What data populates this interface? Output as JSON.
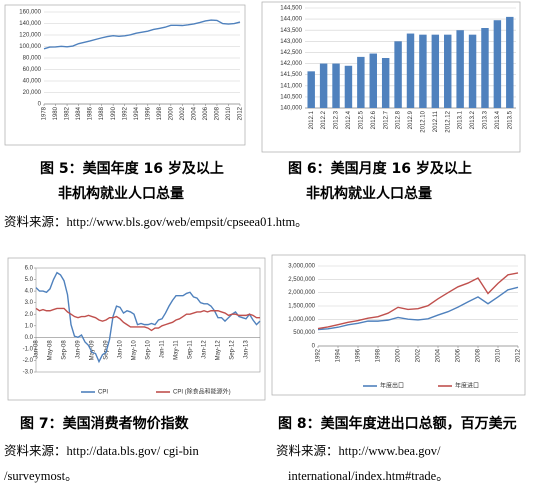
{
  "chart_data": [
    {
      "type": "line",
      "x": [
        1978,
        1979,
        1980,
        1981,
        1982,
        1983,
        1984,
        1985,
        1986,
        1987,
        1988,
        1989,
        1990,
        1991,
        1992,
        1993,
        1994,
        1995,
        1996,
        1997,
        1998,
        1999,
        2000,
        2001,
        2002,
        2003,
        2004,
        2005,
        2006,
        2007,
        2008,
        2009,
        2010,
        2011,
        2012
      ],
      "series": [
        {
          "color": "#4f81bd",
          "values": [
            96000,
            99000,
            99300,
            100400,
            99500,
            100800,
            105000,
            107200,
            109600,
            112400,
            115000,
            117300,
            118800,
            117700,
            118500,
            120300,
            123100,
            124900,
            126700,
            129600,
            131500,
            133500,
            136900,
            136900,
            136500,
            137700,
            139300,
            141700,
            144400,
            146000,
            145400,
            139900,
            139100,
            139900,
            142500
          ]
        }
      ],
      "xlim": [
        1978,
        2012
      ],
      "xticks": [
        1978,
        1980,
        1982,
        1984,
        1986,
        1988,
        1990,
        1992,
        1994,
        1996,
        1998,
        2000,
        2002,
        2004,
        2006,
        2008,
        2010,
        2012
      ],
      "ylim": [
        0,
        160000
      ],
      "yticks": [
        0,
        {
          "value": 20000,
          "label": "20,000"
        },
        {
          "value": 40000,
          "label": "40,000"
        },
        {
          "value": 60000,
          "label": "60,000"
        },
        {
          "value": 80000,
          "label": "80,000"
        },
        {
          "value": 100000,
          "label": "100,000"
        },
        {
          "value": 120000,
          "label": "120,000"
        },
        {
          "value": 140000,
          "label": "140,000"
        },
        {
          "value": 160000,
          "label": "160,000"
        }
      ],
      "grid": true
    },
    {
      "type": "bar",
      "categories": [
        "2012.1",
        "2012.2",
        "2012.3",
        "2012.4",
        "2012.5",
        "2012.6",
        "2012.7",
        "2012.8",
        "2012.9",
        "2012.10",
        "2012.11",
        "2012.12",
        "2013.1",
        "2013.2",
        "2013.3",
        "2013.4",
        "2013.5"
      ],
      "values": [
        141650,
        142000,
        142000,
        141900,
        142300,
        142450,
        142250,
        143000,
        143350,
        143300,
        143300,
        143300,
        143500,
        143300,
        143600,
        143950,
        144100
      ],
      "color": "#4f81bd",
      "ylim": [
        140000,
        144500
      ],
      "yticks": [
        {
          "value": 140000,
          "label": "140,000"
        },
        {
          "value": 140500,
          "label": "140,500"
        },
        {
          "value": 141000,
          "label": "141,000"
        },
        {
          "value": 141500,
          "label": "141,500"
        },
        {
          "value": 142000,
          "label": "142,000"
        },
        {
          "value": 142500,
          "label": "142,500"
        },
        {
          "value": 143000,
          "label": "143,000"
        },
        {
          "value": 143500,
          "label": "143,500"
        },
        {
          "value": 144000,
          "label": "144,000"
        },
        {
          "value": 144500,
          "label": "144,500"
        }
      ],
      "grid": true
    },
    {
      "type": "line",
      "categories": [
        "Jan-08",
        null,
        null,
        null,
        "May-08",
        null,
        null,
        null,
        "Sep-08",
        null,
        null,
        null,
        "Jan-09",
        null,
        null,
        null,
        "May-09",
        null,
        null,
        null,
        "Sep-09",
        null,
        null,
        null,
        "Jan-10",
        null,
        null,
        null,
        "May-10",
        null,
        null,
        null,
        "Sep-10",
        null,
        null,
        null,
        "Jan-11",
        null,
        null,
        null,
        "May-11",
        null,
        null,
        null,
        "Sep-11",
        null,
        null,
        null,
        "Jan-12",
        null,
        null,
        null,
        "May-12",
        null,
        null,
        null,
        "Sep-12",
        null,
        null,
        null,
        "Jan-13",
        null,
        null,
        null,
        null
      ],
      "series": [
        {
          "name": "CPI",
          "color": "#4f81bd",
          "values": [
            4.3,
            4.0,
            4.0,
            3.9,
            4.2,
            5.0,
            5.6,
            5.4,
            4.9,
            3.7,
            1.1,
            0.1,
            0.0,
            0.2,
            -0.4,
            -0.7,
            -1.3,
            -1.4,
            -2.1,
            -1.5,
            -1.3,
            -0.2,
            1.8,
            2.7,
            2.6,
            2.1,
            2.3,
            2.2,
            2.0,
            1.1,
            1.2,
            1.1,
            1.1,
            1.2,
            1.1,
            1.5,
            1.6,
            2.1,
            2.7,
            3.2,
            3.6,
            3.6,
            3.6,
            3.8,
            3.9,
            3.5,
            3.4,
            3.0,
            2.9,
            2.9,
            2.7,
            2.3,
            1.7,
            1.7,
            1.4,
            1.7,
            2.0,
            2.2,
            1.8,
            1.7,
            1.6,
            2.0,
            1.5,
            1.1,
            1.4
          ]
        },
        {
          "name": "CPI (除食品和能源外)",
          "color": "#c0504d",
          "values": [
            2.5,
            2.3,
            2.4,
            2.3,
            2.3,
            2.4,
            2.5,
            2.5,
            2.5,
            2.2,
            2.0,
            1.8,
            1.7,
            1.8,
            1.8,
            1.9,
            1.8,
            1.7,
            1.5,
            1.4,
            1.5,
            1.7,
            1.7,
            1.8,
            1.6,
            1.3,
            1.1,
            0.9,
            0.9,
            0.9,
            0.9,
            0.9,
            0.8,
            0.6,
            0.8,
            0.8,
            1.0,
            1.1,
            1.2,
            1.3,
            1.5,
            1.6,
            1.8,
            2.0,
            2.0,
            2.1,
            2.2,
            2.2,
            2.3,
            2.2,
            2.3,
            2.3,
            2.3,
            2.2,
            2.1,
            1.9,
            2.0,
            2.0,
            1.9,
            1.9,
            1.9,
            2.0,
            1.9,
            1.7,
            1.7
          ]
        }
      ],
      "ylim": [
        -3,
        6
      ],
      "yticks": [
        {
          "value": -3,
          "label": "-3.0"
        },
        {
          "value": -2,
          "label": "-2.0"
        },
        {
          "value": -1,
          "label": "-1.0"
        },
        {
          "value": 0,
          "label": "0.0"
        },
        {
          "value": 1,
          "label": "1.0"
        },
        {
          "value": 2,
          "label": "2.0"
        },
        {
          "value": 3,
          "label": "3.0"
        },
        {
          "value": 4,
          "label": "4.0"
        },
        {
          "value": 5,
          "label": "5.0"
        },
        {
          "value": 6,
          "label": "6.0"
        }
      ],
      "grid": false
    },
    {
      "type": "line",
      "x": [
        1992,
        1993,
        1994,
        1995,
        1996,
        1997,
        1998,
        1999,
        2000,
        2001,
        2002,
        2003,
        2004,
        2005,
        2006,
        2007,
        2008,
        2009,
        2010,
        2011,
        2012
      ],
      "series": [
        {
          "name": "年度出口",
          "color": "#4f81bd",
          "values": [
            617000,
            643000,
            703000,
            794000,
            852000,
            934000,
            933000,
            970000,
            1070000,
            1005000,
            978000,
            1020000,
            1160000,
            1286000,
            1458000,
            1654000,
            1842000,
            1584000,
            1840000,
            2107000,
            2200000
          ]
        },
        {
          "name": "年度进口",
          "color": "#c0504d",
          "values": [
            656000,
            713000,
            801000,
            890000,
            955000,
            1043000,
            1100000,
            1230000,
            1450000,
            1370000,
            1400000,
            1510000,
            1770000,
            2000000,
            2220000,
            2360000,
            2550000,
            1970000,
            2350000,
            2670000,
            2740000
          ]
        }
      ],
      "xlim": [
        1992,
        2012
      ],
      "xticks": [
        1992,
        1994,
        1996,
        1998,
        2000,
        2002,
        2004,
        2006,
        2008,
        2010,
        2012
      ],
      "ylim": [
        0,
        3000000
      ],
      "yticks": [
        0,
        {
          "value": 500000,
          "label": "500,000"
        },
        {
          "value": 1000000,
          "label": "1,000,000"
        },
        {
          "value": 1500000,
          "label": "1,500,000"
        },
        {
          "value": 2000000,
          "label": "2,000,000"
        },
        {
          "value": 2500000,
          "label": "2,500,000"
        },
        {
          "value": 3000000,
          "label": "3,000,000"
        }
      ],
      "grid": true
    }
  ],
  "captions": [
    [
      "图 5：美国年度 16 岁及以上",
      "非机构就业人口总量"
    ],
    [
      "图 6：美国月度 16 岁及以上",
      "非机构就业人口总量"
    ],
    [
      "图 7：美国消费者物价指数"
    ],
    [
      "图 8：美国年度进出口总额，百万美元"
    ]
  ],
  "sources": [
    [
      "资料来源：http://www.bls.gov/web/empsit/cpseea01.htm。"
    ],
    [
      "资料来源：http://data.bls.gov/ cgi-bin",
      "/surveymost。"
    ],
    [
      "资料来源：http://www.bea.gov/",
      "international/index.htm#trade。"
    ]
  ]
}
